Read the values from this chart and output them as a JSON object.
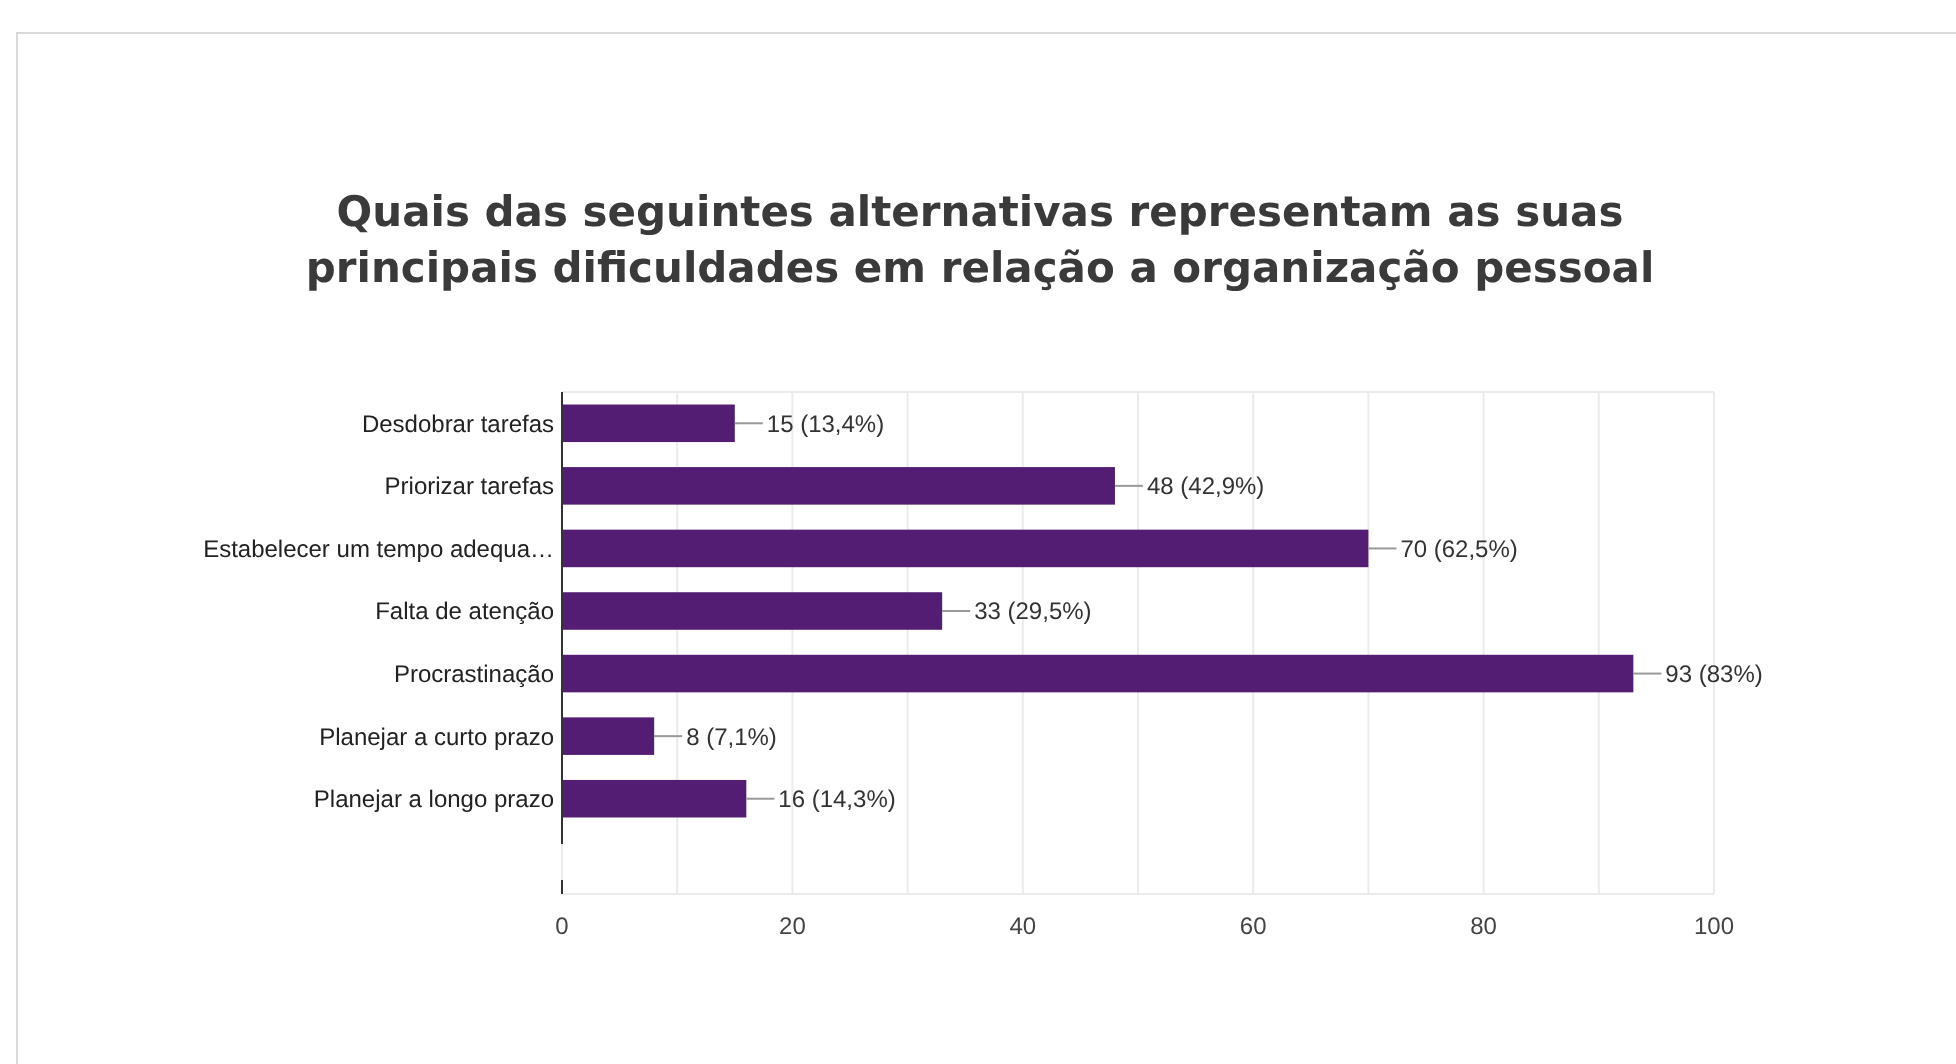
{
  "chart_data": {
    "type": "bar",
    "orientation": "horizontal",
    "title": "Quais das seguintes alternativas representam as suas\nprincipais dificuldades em relação a organização pessoal",
    "categories": [
      "Desdobrar tarefas",
      "Priorizar tarefas",
      "Estabelecer um tempo adequa…",
      "Falta de atenção",
      "Procrastinação",
      "Planejar a curto prazo",
      "Planejar a longo prazo"
    ],
    "values": [
      15,
      48,
      70,
      33,
      93,
      8,
      16
    ],
    "value_labels": [
      "15 (13,4%)",
      "48 (42,9%)",
      "70 (62,5%)",
      "33 (29,5%)",
      "93 (83%)",
      "8 (7,1%)",
      "16 (14,3%)"
    ],
    "color": "#521d72",
    "xlim": [
      0,
      100
    ],
    "xticks": [
      0,
      {
        "value": 10,
        "label": null
      },
      20,
      {
        "value": 30,
        "label": null
      },
      40,
      {
        "value": 50,
        "label": null
      },
      60,
      {
        "value": 70,
        "label": null
      },
      80,
      {
        "value": 90,
        "label": null
      },
      100
    ],
    "grid": "x"
  }
}
